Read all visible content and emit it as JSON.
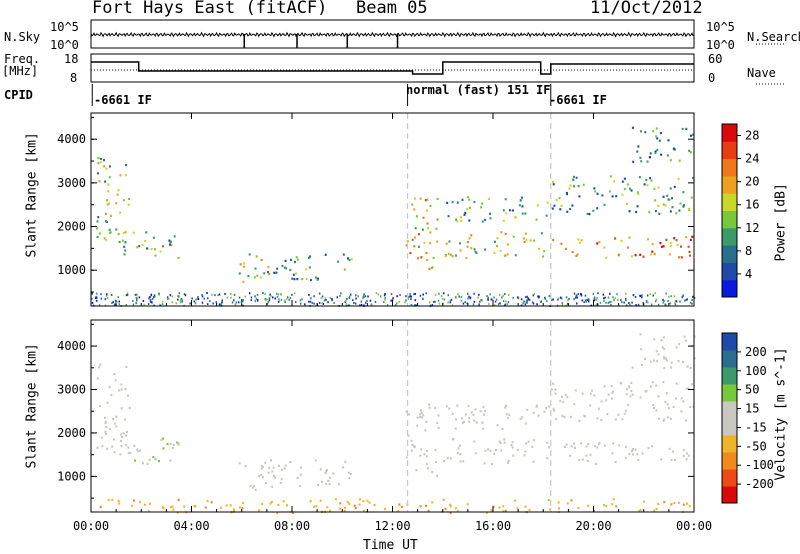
{
  "header": {
    "station": "Fort Hays East (fitACF)",
    "beam": "Beam 05",
    "date": "11/Oct/2012"
  },
  "nsky_panel": {
    "left_label": "N.Sky",
    "right_label": "N.Search",
    "tick_top": "10^5",
    "tick_bottom": "10^0"
  },
  "freq_panel": {
    "left_label_1": "Freq.",
    "left_label_2": "[MHz]",
    "right_label": "Nave",
    "left_ticks": [
      "18",
      "8"
    ],
    "right_ticks": [
      "60",
      "0"
    ]
  },
  "cpid_panel": {
    "label": "CPID",
    "segments": [
      "-6661 IF",
      "normal (fast) 151 IF",
      "-6661 IF"
    ]
  },
  "colors": {
    "power_scale": [
      "#0a1adc",
      "#1e4aa8",
      "#2a6e8e",
      "#3c9a6a",
      "#78c83c",
      "#c8d828",
      "#f0a020",
      "#f07818",
      "#e83c14",
      "#d80a0a"
    ],
    "velocity_scale": [
      "#d80a0a",
      "#f04a14",
      "#f08a1e",
      "#f0b428",
      "#c8c8c0",
      "#c8c8c0",
      "#78c83c",
      "#3c9a6a",
      "#2a6e8e",
      "#1e4aa8"
    ]
  },
  "chart_data": [
    {
      "type": "heatmap",
      "title": "",
      "xlabel": "Time UT",
      "ylabel": "Slant Range [km]",
      "colorbar_label": "Power [dB]",
      "colorbar_ticks": [
        "28",
        "24",
        "20",
        "16",
        "12",
        "8",
        "4"
      ],
      "xticks": [
        "00:00",
        "04:00",
        "08:00",
        "12:00",
        "16:00",
        "20:00",
        "00:00"
      ],
      "yticks": [
        "1000",
        "2000",
        "3000",
        "4000"
      ],
      "xlim_hours": [
        0,
        24
      ],
      "ylim_km": [
        180,
        4600
      ],
      "zlim": [
        0,
        30
      ],
      "dashed_lines_hours": [
        12.6,
        18.3
      ],
      "echo_regions": [
        {
          "t0": 0.2,
          "t1": 1.5,
          "r0": 1500,
          "r1": 3600,
          "power": 14
        },
        {
          "t0": 1.0,
          "t1": 3.5,
          "r0": 1300,
          "r1": 1900,
          "power": 12
        },
        {
          "t0": 5.8,
          "t1": 7.2,
          "r0": 700,
          "r1": 1400,
          "power": 16
        },
        {
          "t0": 7.0,
          "t1": 10.5,
          "r0": 800,
          "r1": 1400,
          "power": 10
        },
        {
          "t0": 12.5,
          "t1": 13.8,
          "r0": 1000,
          "r1": 2700,
          "power": 18
        },
        {
          "t0": 14.0,
          "t1": 18.2,
          "r0": 1300,
          "r1": 1900,
          "power": 16
        },
        {
          "t0": 14.0,
          "t1": 18.2,
          "r0": 2100,
          "r1": 2700,
          "power": 10
        },
        {
          "t0": 18.3,
          "t1": 24.0,
          "r0": 1300,
          "r1": 1800,
          "power": 22
        },
        {
          "t0": 18.3,
          "t1": 24.0,
          "r0": 2300,
          "r1": 3200,
          "power": 10
        },
        {
          "t0": 21.5,
          "t1": 24.0,
          "r0": 3500,
          "r1": 4300,
          "power": 8
        }
      ]
    },
    {
      "type": "heatmap",
      "title": "",
      "xlabel": "Time UT",
      "ylabel": "Slant Range [km]",
      "colorbar_label": "Velocity [m s^-1]",
      "colorbar_ticks": [
        "200",
        "100",
        "50",
        "15",
        "-15",
        "-50",
        "-100",
        "-200"
      ],
      "xticks": [
        "00:00",
        "04:00",
        "08:00",
        "12:00",
        "16:00",
        "20:00",
        "00:00"
      ],
      "yticks": [
        "1000",
        "2000",
        "3000",
        "4000"
      ],
      "xlim_hours": [
        0,
        24
      ],
      "ylim_km": [
        180,
        4600
      ],
      "zlim": [
        -250,
        250
      ],
      "dashed_lines_hours": [
        12.6,
        18.3
      ],
      "echo_regions": [
        {
          "t0": 0.2,
          "t1": 1.5,
          "r0": 1500,
          "r1": 3600,
          "velocity": 0
        },
        {
          "t0": 1.0,
          "t1": 3.5,
          "r0": 1300,
          "r1": 1900,
          "velocity": 40
        },
        {
          "t0": 5.8,
          "t1": 7.2,
          "r0": 700,
          "r1": 1400,
          "velocity": 0
        },
        {
          "t0": 7.0,
          "t1": 10.5,
          "r0": 800,
          "r1": 1400,
          "velocity": 0
        },
        {
          "t0": 12.5,
          "t1": 13.8,
          "r0": 1000,
          "r1": 2700,
          "velocity": 0
        },
        {
          "t0": 14.0,
          "t1": 18.2,
          "r0": 1300,
          "r1": 1900,
          "velocity": 0
        },
        {
          "t0": 14.0,
          "t1": 18.2,
          "r0": 2100,
          "r1": 2700,
          "velocity": 0
        },
        {
          "t0": 18.3,
          "t1": 24.0,
          "r0": 1300,
          "r1": 1800,
          "velocity": 0
        },
        {
          "t0": 18.3,
          "t1": 24.0,
          "r0": 2300,
          "r1": 3200,
          "velocity": 0
        },
        {
          "t0": 21.5,
          "t1": 24.0,
          "r0": 3500,
          "r1": 4300,
          "velocity": 0
        },
        {
          "t0": 0.0,
          "t1": 24.0,
          "r0": 180,
          "r1": 500,
          "velocity": -80
        }
      ]
    }
  ]
}
